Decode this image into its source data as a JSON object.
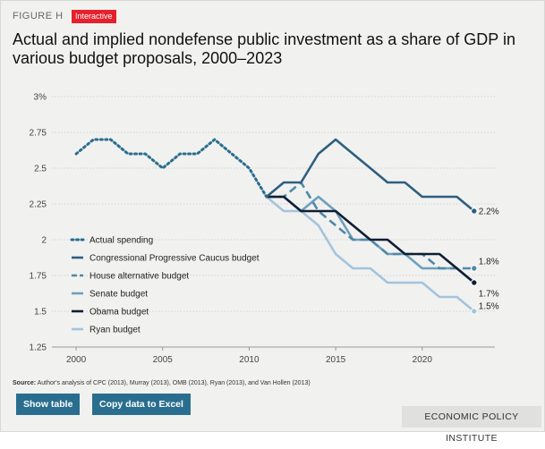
{
  "header": {
    "figure_label": "FIGURE H",
    "badge": "Interactive",
    "title": "Actual and implied nondefense public investment as a share of GDP in various budget proposals, 2000–2023"
  },
  "footer": {
    "source_prefix": "Source:",
    "source_text": "Author's analysis of CPC (2013), Murray (2013), OMB (2013), Ryan (2013), and Van Hollen (2013)",
    "show_table": "Show table",
    "copy_excel": "Copy data to Excel",
    "publisher": "ECONOMIC POLICY INSTITUTE"
  },
  "chart_data": {
    "type": "line",
    "xlim": [
      1998.6,
      2024.2
    ],
    "ylim": [
      1.25,
      3
    ],
    "xticks": [
      "2000",
      "2005",
      "2010",
      "2015",
      "2020"
    ],
    "xtick_values": [
      2000,
      2005,
      2010,
      2015,
      2020
    ],
    "yticks": [
      "1.25",
      "1.5",
      "1.75",
      "2",
      "2.25",
      "2.5",
      "2.75",
      "3%"
    ],
    "ytick_values": [
      1.25,
      1.5,
      1.75,
      2,
      2.25,
      2.5,
      2.75,
      3
    ],
    "grid": true,
    "legend_position": "left-middle",
    "series": [
      {
        "name": "Actual spending",
        "color": "#2a6e8f",
        "dash": "dotted",
        "x": [
          2000,
          2001,
          2002,
          2003,
          2004,
          2005,
          2006,
          2007,
          2008,
          2009,
          2010,
          2011
        ],
        "y": [
          2.6,
          2.7,
          2.7,
          2.6,
          2.6,
          2.5,
          2.6,
          2.6,
          2.7,
          2.6,
          2.5,
          2.3
        ]
      },
      {
        "name": "Congressional Progressive Caucus budget",
        "color": "#2d5f7f",
        "dash": "solid",
        "x": [
          2011,
          2012,
          2013,
          2014,
          2015,
          2016,
          2017,
          2018,
          2019,
          2020,
          2021,
          2022,
          2023
        ],
        "y": [
          2.3,
          2.4,
          2.4,
          2.6,
          2.7,
          2.6,
          2.5,
          2.4,
          2.4,
          2.3,
          2.3,
          2.3,
          2.2
        ],
        "end_label": "2.2%"
      },
      {
        "name": "House alternative budget",
        "color": "#4f89a8",
        "dash": "dashed",
        "x": [
          2011,
          2012,
          2013,
          2014,
          2015,
          2016,
          2017,
          2018,
          2019,
          2020,
          2021,
          2022,
          2023
        ],
        "y": [
          2.3,
          2.3,
          2.4,
          2.2,
          2.1,
          2.0,
          2.0,
          1.9,
          1.9,
          1.9,
          1.8,
          1.8,
          1.8
        ],
        "end_label": "1.8%"
      },
      {
        "name": "Senate budget",
        "color": "#6d9fbb",
        "dash": "solid",
        "x": [
          2011,
          2012,
          2013,
          2014,
          2015,
          2016,
          2017,
          2018,
          2019,
          2020,
          2021,
          2022,
          2023
        ],
        "y": [
          2.3,
          2.3,
          2.2,
          2.3,
          2.2,
          2.0,
          2.0,
          1.9,
          1.9,
          1.8,
          1.8,
          1.8,
          1.7
        ]
      },
      {
        "name": "Obama budget",
        "color": "#0f1e33",
        "dash": "solid",
        "x": [
          2011,
          2012,
          2013,
          2014,
          2015,
          2016,
          2017,
          2018,
          2019,
          2020,
          2021,
          2022,
          2023
        ],
        "y": [
          2.3,
          2.3,
          2.2,
          2.2,
          2.2,
          2.1,
          2.0,
          2.0,
          1.9,
          1.9,
          1.9,
          1.8,
          1.7
        ],
        "end_label": "1.7%"
      },
      {
        "name": "Ryan budget",
        "color": "#a3c4dc",
        "dash": "solid",
        "x": [
          2011,
          2012,
          2013,
          2014,
          2015,
          2016,
          2017,
          2018,
          2019,
          2020,
          2021,
          2022,
          2023
        ],
        "y": [
          2.3,
          2.2,
          2.2,
          2.1,
          1.9,
          1.8,
          1.8,
          1.7,
          1.7,
          1.7,
          1.6,
          1.6,
          1.5
        ],
        "end_label": "1.5%"
      }
    ]
  }
}
